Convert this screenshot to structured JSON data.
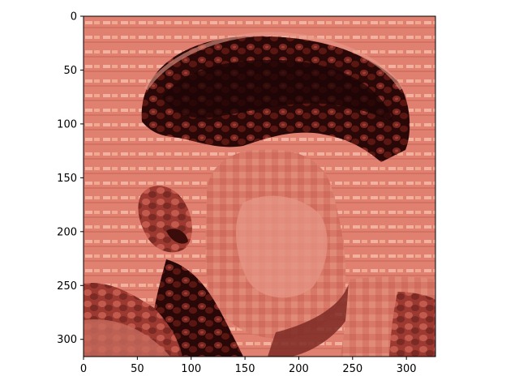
{
  "image": {
    "description": "",
    "colormap": "red-tinted texture mosaic",
    "colors": {
      "background": "#e08070",
      "dark": "#2a0808",
      "mid": "#b04a40",
      "light": "#f0a890",
      "highlight": "#f8d0c0",
      "axes": "#000000"
    }
  },
  "axes": {
    "x": {
      "min": 0,
      "max": 327,
      "ticks": [
        0,
        50,
        100,
        150,
        200,
        250,
        300
      ]
    },
    "y": {
      "min": 0,
      "max": 316,
      "ticks": [
        0,
        50,
        100,
        150,
        200,
        250,
        300
      ],
      "inverted": true
    }
  },
  "labels": {
    "x_ticks": [
      "0",
      "50",
      "100",
      "150",
      "200",
      "250",
      "300"
    ],
    "y_ticks": [
      "0",
      "50",
      "100",
      "150",
      "200",
      "250",
      "300"
    ]
  }
}
